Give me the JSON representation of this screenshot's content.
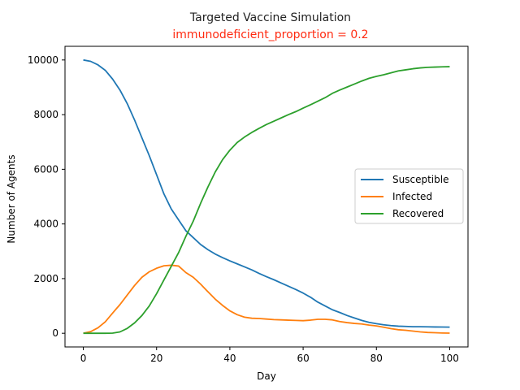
{
  "chart_data": {
    "type": "line",
    "title": "Targeted Vaccine Simulation",
    "subtitle": "immunodeficient_proportion = 0.2",
    "subtitle_color": "#ff2a10",
    "xlabel": "Day",
    "ylabel": "Number of Agents",
    "xlim": [
      -5,
      105
    ],
    "ylim": [
      -500,
      10500
    ],
    "xticks": [
      0,
      20,
      40,
      60,
      80,
      100
    ],
    "yticks": [
      0,
      2000,
      4000,
      6000,
      8000,
      10000
    ],
    "grid": false,
    "legend_position": "center-right",
    "x": [
      0,
      2,
      4,
      6,
      8,
      10,
      12,
      14,
      16,
      18,
      20,
      22,
      24,
      26,
      28,
      30,
      32,
      34,
      36,
      38,
      40,
      42,
      44,
      46,
      48,
      50,
      52,
      54,
      56,
      58,
      60,
      62,
      64,
      66,
      68,
      70,
      72,
      74,
      76,
      78,
      80,
      82,
      84,
      86,
      88,
      90,
      92,
      94,
      96,
      98,
      100
    ],
    "series": [
      {
        "name": "Susceptible",
        "color": "#1f77b4",
        "values": [
          10000,
          9950,
          9820,
          9620,
          9300,
          8900,
          8400,
          7800,
          7150,
          6500,
          5800,
          5100,
          4550,
          4150,
          3750,
          3500,
          3250,
          3060,
          2900,
          2770,
          2650,
          2540,
          2430,
          2320,
          2190,
          2070,
          1960,
          1840,
          1720,
          1600,
          1470,
          1320,
          1140,
          1000,
          860,
          760,
          650,
          560,
          470,
          400,
          350,
          310,
          280,
          260,
          250,
          240,
          240,
          235,
          230,
          228,
          225
        ]
      },
      {
        "name": "Infected",
        "color": "#ff7f0e",
        "values": [
          0,
          60,
          200,
          420,
          740,
          1050,
          1400,
          1750,
          2050,
          2250,
          2380,
          2470,
          2490,
          2460,
          2220,
          2050,
          1800,
          1520,
          1250,
          1020,
          820,
          680,
          590,
          550,
          540,
          520,
          500,
          490,
          480,
          470,
          460,
          480,
          510,
          510,
          490,
          430,
          390,
          360,
          340,
          300,
          270,
          220,
          170,
          130,
          110,
          80,
          50,
          30,
          20,
          10,
          5
        ]
      },
      {
        "name": "Recovered",
        "color": "#2ca02c",
        "values": [
          0,
          0,
          0,
          0,
          5,
          50,
          180,
          380,
          650,
          1000,
          1450,
          1950,
          2450,
          2950,
          3550,
          4100,
          4750,
          5350,
          5900,
          6350,
          6700,
          6980,
          7180,
          7350,
          7500,
          7640,
          7760,
          7880,
          8000,
          8110,
          8240,
          8360,
          8490,
          8620,
          8780,
          8900,
          9010,
          9120,
          9230,
          9330,
          9400,
          9460,
          9530,
          9600,
          9640,
          9680,
          9710,
          9730,
          9740,
          9750,
          9755
        ]
      }
    ]
  }
}
